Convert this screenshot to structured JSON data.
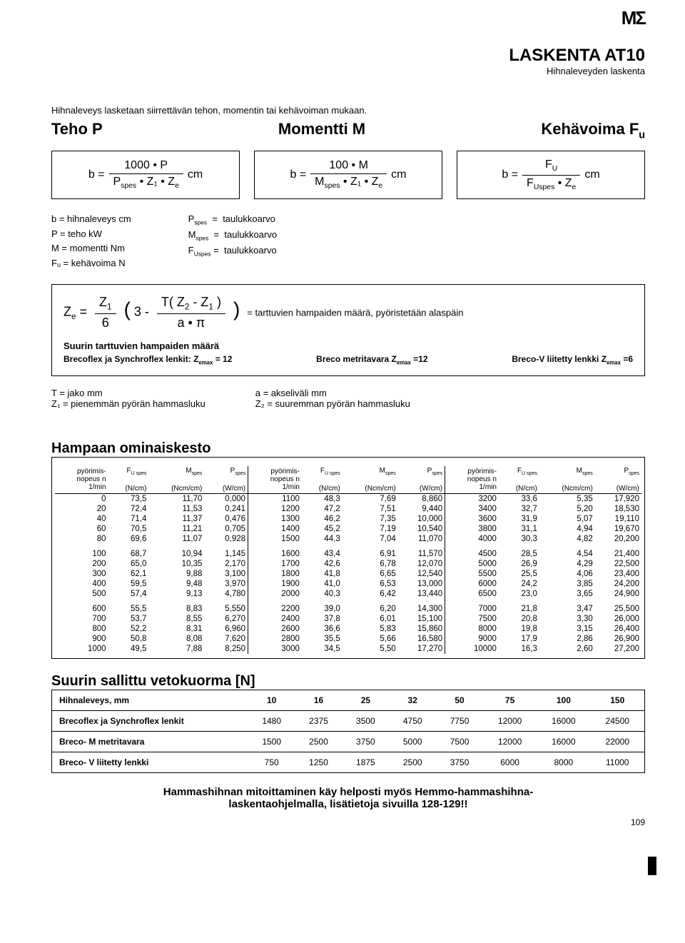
{
  "logo": "MΣ",
  "title": "LASKENTA AT10",
  "subtitle": "Hihnaleveyden laskenta",
  "intro": "Hihnaleveys lasketaan siirrettävän tehon, momentin tai kehävoiman mukaan.",
  "columns": {
    "p": "Teho P",
    "m": "Momentti M",
    "f": "Kehävoima F"
  },
  "formulas": {
    "p": {
      "lhs": "b =",
      "num": "1000 • P",
      "den_a": "P",
      "den_rest": " • Z₁ • Z",
      "unit": "cm"
    },
    "m": {
      "lhs": "b =",
      "num": "100 • M",
      "den_a": "M",
      "den_rest": " • Z₁ • Z",
      "unit": "cm"
    },
    "f": {
      "lhs": "b =",
      "num_a": "F",
      "den_a": "F",
      "den_rest": " • Z",
      "unit": "cm"
    }
  },
  "defs_left": [
    "b   =  hihnaleveys cm",
    "P   =  teho kW",
    "M   =  momentti Nm",
    "Fᵤ  =  kehävoima N"
  ],
  "defs_right": [
    "P_spes   =  taulukkoarvo",
    "M_spes   =  taulukkoarvo",
    "F_Uspes  =  taulukkoarvo"
  ],
  "ze": {
    "text_after": "=  tarttuvien hampaiden määrä, pyöristetään alaspäin",
    "sub_title": "Suurin tarttuvien hampaiden määrä",
    "items": [
      "Brecoflex ja Synchroflex lenkit: Z_emax = 12",
      "Breco metritavara Z_emax =12",
      "Breco-V liitetty lenkki Z_emax =6"
    ]
  },
  "tz": [
    "T      = jako mm",
    "Z₁     = pienemmän pyörän hammasluku",
    "a      = akseliväli mm",
    "Z₂     = suuremman pyörän hammasluku"
  ],
  "hampaan_title": "Hampaan ominaiskesto",
  "headers": {
    "n": "pyörimis-\nnopeus n\n1/min",
    "f": "F",
    "f_unit": "(N/cm)",
    "m": "M",
    "m_unit": "(Ncm/cm)",
    "p": "P",
    "p_unit": "(W/cm)",
    "sub": "spes",
    "subU": "U spes"
  },
  "data": [
    [
      [
        "0",
        "73,5",
        "11,70",
        "0,000"
      ],
      [
        "20",
        "72,4",
        "11,53",
        "0,241"
      ],
      [
        "40",
        "71,4",
        "11,37",
        "0,476"
      ],
      [
        "60",
        "70,5",
        "11,21",
        "0,705"
      ],
      [
        "80",
        "69,6",
        "11,07",
        "0,928"
      ]
    ],
    [
      [
        "100",
        "68,7",
        "10,94",
        "1,145"
      ],
      [
        "200",
        "65,0",
        "10,35",
        "2,170"
      ],
      [
        "300",
        "62,1",
        "9,88",
        "3,100"
      ],
      [
        "400",
        "59,5",
        "9,48",
        "3,970"
      ],
      [
        "500",
        "57,4",
        "9,13",
        "4,780"
      ]
    ],
    [
      [
        "600",
        "55,5",
        "8,83",
        "5,550"
      ],
      [
        "700",
        "53,7",
        "8,55",
        "6,270"
      ],
      [
        "800",
        "52,2",
        "8,31",
        "6,960"
      ],
      [
        "900",
        "50,8",
        "8,08",
        "7,620"
      ],
      [
        "1000",
        "49,5",
        "7,88",
        "8,250"
      ]
    ]
  ],
  "data2": [
    [
      [
        "1100",
        "48,3",
        "7,69",
        "8,860"
      ],
      [
        "1200",
        "47,2",
        "7,51",
        "9,440"
      ],
      [
        "1300",
        "46,2",
        "7,35",
        "10,000"
      ],
      [
        "1400",
        "45,2",
        "7,19",
        "10,540"
      ],
      [
        "1500",
        "44,3",
        "7,04",
        "11,070"
      ]
    ],
    [
      [
        "1600",
        "43,4",
        "6,91",
        "11,570"
      ],
      [
        "1700",
        "42,6",
        "6,78",
        "12,070"
      ],
      [
        "1800",
        "41,8",
        "6,65",
        "12,540"
      ],
      [
        "1900",
        "41,0",
        "6,53",
        "13,000"
      ],
      [
        "2000",
        "40,3",
        "6,42",
        "13,440"
      ]
    ],
    [
      [
        "2200",
        "39,0",
        "6,20",
        "14,300"
      ],
      [
        "2400",
        "37,8",
        "6,01",
        "15,100"
      ],
      [
        "2600",
        "36,6",
        "5,83",
        "15,860"
      ],
      [
        "2800",
        "35,5",
        "5,66",
        "16,580"
      ],
      [
        "3000",
        "34,5",
        "5,50",
        "17,270"
      ]
    ]
  ],
  "data3": [
    [
      [
        "3200",
        "33,6",
        "5,35",
        "17,920"
      ],
      [
        "3400",
        "32,7",
        "5,20",
        "18,530"
      ],
      [
        "3600",
        "31,9",
        "5,07",
        "19,110"
      ],
      [
        "3800",
        "31,1",
        "4,94",
        "19,670"
      ],
      [
        "4000",
        "30,3",
        "4,82",
        "20,200"
      ]
    ],
    [
      [
        "4500",
        "28,5",
        "4,54",
        "21,400"
      ],
      [
        "5000",
        "26,9",
        "4,29",
        "22,500"
      ],
      [
        "5500",
        "25,5",
        "4,06",
        "23,400"
      ],
      [
        "6000",
        "24,2",
        "3,85",
        "24,200"
      ],
      [
        "6500",
        "23,0",
        "3,65",
        "24,900"
      ]
    ],
    [
      [
        "7000",
        "21,8",
        "3,47",
        "25,500"
      ],
      [
        "7500",
        "20,8",
        "3,30",
        "26,000"
      ],
      [
        "8000",
        "19,8",
        "3,15",
        "26,400"
      ],
      [
        "9000",
        "17,9",
        "2,86",
        "26,900"
      ],
      [
        "10000",
        "16,3",
        "2,60",
        "27,200"
      ]
    ]
  ],
  "suurin_title": "Suurin sallittu vetokuorma [N]",
  "load": {
    "header": [
      "Hihnaleveys, mm",
      "10",
      "16",
      "25",
      "32",
      "50",
      "75",
      "100",
      "150"
    ],
    "rows": [
      [
        "Brecoflex ja Synchroflex lenkit",
        "1480",
        "2375",
        "3500",
        "4750",
        "7750",
        "12000",
        "16000",
        "24500"
      ],
      [
        "Breco- M metritavara",
        "1500",
        "2500",
        "3750",
        "5000",
        "7500",
        "12000",
        "16000",
        "22000"
      ],
      [
        "Breco- V liitetty lenkki",
        "750",
        "1250",
        "1875",
        "2500",
        "3750",
        "6000",
        "8000",
        "11000"
      ]
    ]
  },
  "footer": "Hammashihnan mitoittaminen käy helposti myös Hemmo-hammashihna-\nlaskentaohjelmalla, lisätietoja sivuilla 128-129!!",
  "pagenum": "109",
  "colors": {
    "text": "#000000",
    "bg": "#ffffff",
    "border": "#000000"
  }
}
